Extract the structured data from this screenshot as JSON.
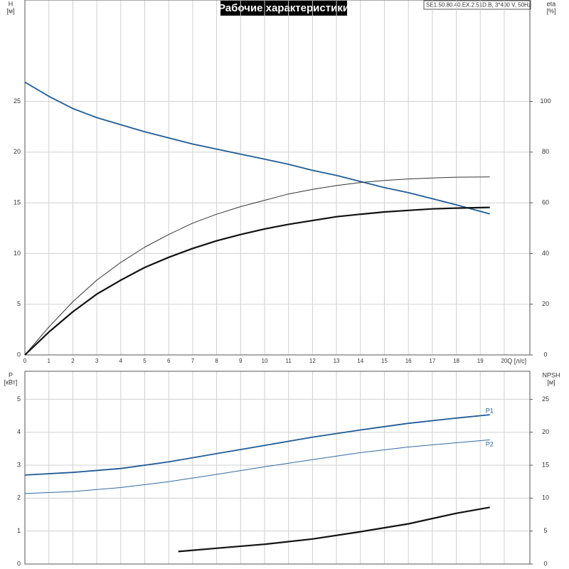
{
  "chart_data": [
    {
      "type": "line",
      "title": "Рабочие характеристики",
      "subtitle": "SE1.50.80.40.EX.2.51D.B, 3*400 V, 50Hz",
      "x_label": "Q [л/с]",
      "y_label": "H",
      "y_unit": "[м]",
      "y2_label": "eta",
      "y2_unit": "[%]",
      "x": [
        0,
        1,
        2,
        3,
        4,
        5,
        6,
        7,
        8,
        9,
        10,
        11,
        12,
        13,
        14,
        15,
        16,
        17,
        18,
        19.4
      ],
      "xlim": [
        0,
        21.07
      ],
      "xticks": [
        0,
        1,
        2,
        3,
        4,
        5,
        6,
        7,
        8,
        9,
        10,
        11,
        12,
        13,
        14,
        15,
        16,
        17,
        18,
        19,
        20
      ],
      "ylim": [
        0,
        35
      ],
      "yticks": [
        0,
        5,
        10,
        15,
        20,
        25
      ],
      "y2lim": [
        0,
        140
      ],
      "y2ticks": [
        0,
        20,
        40,
        60,
        80,
        100
      ],
      "grid": true,
      "series": [
        {
          "color": "#1f5b96",
          "line_width": 1.8,
          "axis": "y",
          "values": [
            26.9,
            25.5,
            24.3,
            23.4,
            22.7,
            22.0,
            21.4,
            20.8,
            20.3,
            19.8,
            19.3,
            18.8,
            18.2,
            17.7,
            17.1,
            16.5,
            16.0,
            15.4,
            14.8,
            13.9
          ]
        },
        {
          "color": "#333333",
          "line_width": 1,
          "axis": "y2",
          "values": [
            0,
            11,
            21,
            29.5,
            36.5,
            42.5,
            47.5,
            52,
            55.5,
            58.5,
            61,
            63.5,
            65.3,
            66.8,
            68,
            68.8,
            69.4,
            69.8,
            70.1,
            70.2
          ]
        },
        {
          "color": "#111111",
          "line_width": 2.2,
          "axis": "y2",
          "values": [
            0,
            9,
            17,
            24,
            29.5,
            34.5,
            38.5,
            42,
            45,
            47.5,
            49.7,
            51.5,
            53,
            54.5,
            55.5,
            56.4,
            57,
            57.6,
            57.9,
            58.2
          ]
        }
      ]
    },
    {
      "type": "line",
      "y_label": "P",
      "y_unit": "[кВт]",
      "y2_label": "NPSH",
      "y2_unit": "[м]",
      "x": [
        0,
        2,
        4,
        6,
        8,
        10,
        12,
        14,
        16,
        18,
        19.4
      ],
      "xlim": [
        0,
        21.07
      ],
      "xticks": [
        0,
        1,
        2,
        3,
        4,
        5,
        6,
        7,
        8,
        9,
        10,
        11,
        12,
        13,
        14,
        15,
        16,
        17,
        18,
        19,
        20
      ],
      "ylim": [
        0,
        5.85
      ],
      "yticks": [
        0,
        1,
        2,
        3,
        4,
        5
      ],
      "y2lim": [
        0,
        29.25
      ],
      "y2ticks": [
        0,
        5,
        10,
        15,
        20,
        25
      ],
      "grid": true,
      "series": [
        {
          "name": "P1",
          "color": "#1f5b96",
          "line_width": 1.8,
          "axis": "y",
          "values": [
            2.7,
            2.78,
            2.9,
            3.1,
            3.35,
            3.6,
            3.85,
            4.07,
            4.27,
            4.43,
            4.53
          ]
        },
        {
          "name": "P2",
          "color": "#2f6aa3",
          "line_width": 1,
          "axis": "y",
          "values": [
            2.14,
            2.2,
            2.32,
            2.5,
            2.72,
            2.95,
            3.17,
            3.38,
            3.55,
            3.68,
            3.77
          ]
        },
        {
          "color": "#111111",
          "line_width": 2.2,
          "axis": "y2",
          "x": [
            6.4,
            8,
            10,
            12,
            14,
            16,
            18,
            19.4
          ],
          "values": [
            1.9,
            2.4,
            3.0,
            3.8,
            4.9,
            6.1,
            7.7,
            8.6
          ]
        }
      ]
    }
  ]
}
